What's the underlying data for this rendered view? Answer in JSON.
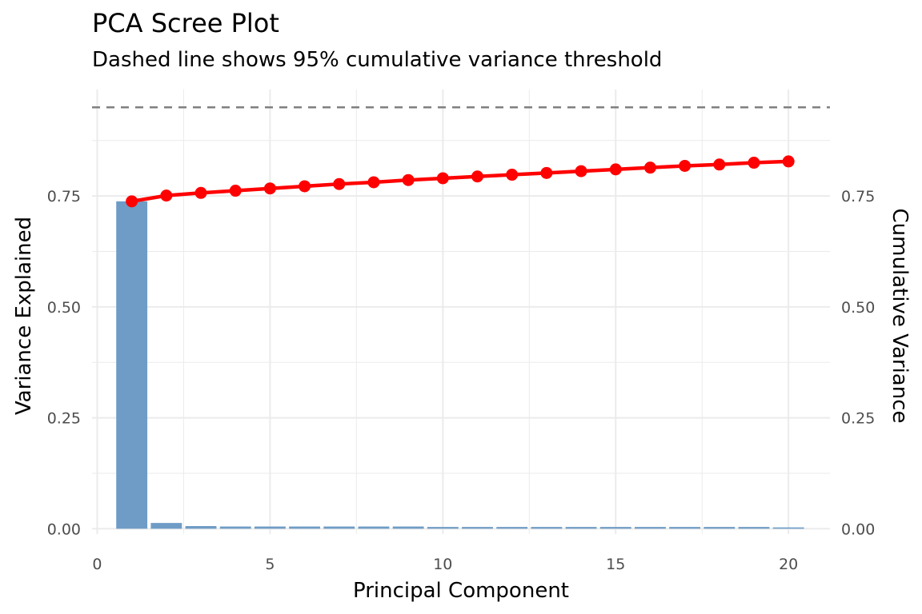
{
  "chart_data": {
    "type": "bar+line",
    "title": "PCA Scree Plot",
    "subtitle": "Dashed line shows 95% cumulative variance threshold",
    "xlabel": "Principal Component",
    "ylabel": "Variance Explained",
    "y2label": "Cumulative Variance",
    "x": [
      1,
      2,
      3,
      4,
      5,
      6,
      7,
      8,
      9,
      10,
      11,
      12,
      13,
      14,
      15,
      16,
      17,
      18,
      19,
      20
    ],
    "variance_explained": [
      0.738,
      0.013,
      0.006,
      0.005,
      0.005,
      0.005,
      0.005,
      0.005,
      0.005,
      0.004,
      0.004,
      0.004,
      0.004,
      0.004,
      0.004,
      0.004,
      0.004,
      0.004,
      0.004,
      0.003
    ],
    "cumulative_variance": [
      0.738,
      0.751,
      0.757,
      0.762,
      0.767,
      0.772,
      0.777,
      0.781,
      0.786,
      0.79,
      0.794,
      0.798,
      0.802,
      0.806,
      0.81,
      0.814,
      0.818,
      0.821,
      0.825,
      0.828
    ],
    "threshold": 0.95,
    "xlim": [
      -0.15,
      21.2
    ],
    "ylim": [
      -0.012,
      0.99
    ],
    "xticks": [
      "0",
      "5",
      "10",
      "15",
      "20"
    ],
    "yticks": [
      "0.00",
      "0.25",
      "0.50",
      "0.75"
    ],
    "grid": true,
    "colors": {
      "bars": "#6f9cc6",
      "line": "#ff0000",
      "threshold": "#808080",
      "grid": "#ebebeb"
    }
  }
}
